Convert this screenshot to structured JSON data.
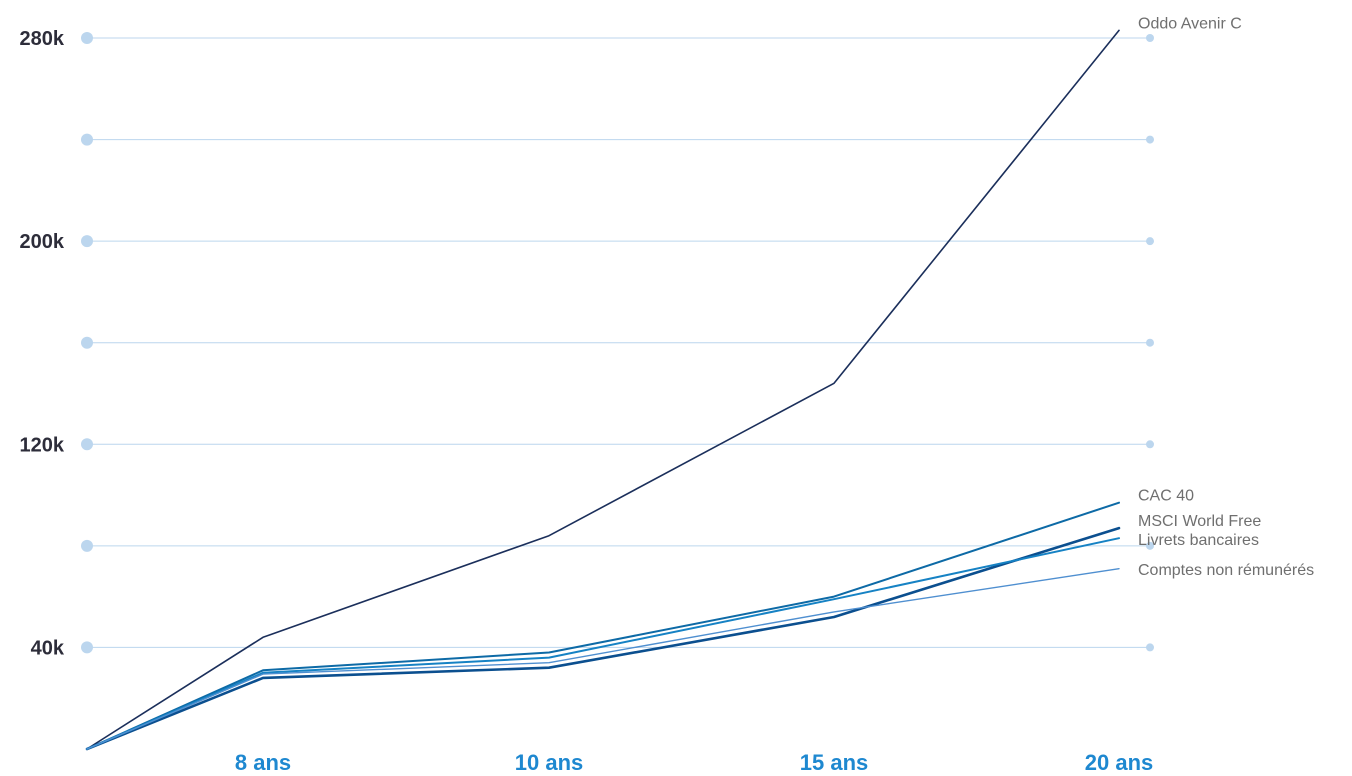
{
  "chart_data": {
    "type": "line",
    "title": "",
    "xlabel": "",
    "ylabel": "",
    "categories": [
      "",
      "8 ans",
      "10 ans",
      "15 ans",
      "20 ans"
    ],
    "y_ticks": [
      {
        "value": 280000,
        "label": "280k"
      },
      {
        "value": 240000,
        "label": ""
      },
      {
        "value": 200000,
        "label": "200k"
      },
      {
        "value": 160000,
        "label": ""
      },
      {
        "value": 120000,
        "label": "120k"
      },
      {
        "value": 80000,
        "label": ""
      },
      {
        "value": 40000,
        "label": "40k"
      }
    ],
    "ylim": [
      0,
      280000
    ],
    "grid": true,
    "legend": "end-of-line labels",
    "series": [
      {
        "name": "Oddo Avenir C",
        "values": [
          0,
          44000,
          84000,
          144000,
          283000
        ],
        "color": "#1b2f5b",
        "width": 1.6
      },
      {
        "name": "CAC 40",
        "values": [
          0,
          31000,
          38000,
          60000,
          97000
        ],
        "color": "#0d6aa6",
        "width": 2.0
      },
      {
        "name": "MSCI World Free",
        "values": [
          0,
          28000,
          32000,
          52000,
          87000
        ],
        "color": "#0b4f8f",
        "width": 2.6
      },
      {
        "name": "Livrets bancaires",
        "values": [
          0,
          30000,
          36000,
          59000,
          83000
        ],
        "color": "#1682c4",
        "width": 2.0
      },
      {
        "name": "Comptes non rémunérés",
        "values": [
          0,
          29500,
          34000,
          54000,
          71000
        ],
        "color": "#4f8fd0",
        "width": 1.4
      }
    ],
    "colors": {
      "grid": "#bcd6ee",
      "grid_dot": "#bcd6ee",
      "x_tick": "#1e88d0",
      "y_tick": "#2d2d3a",
      "label": "#6f6f6f"
    }
  }
}
